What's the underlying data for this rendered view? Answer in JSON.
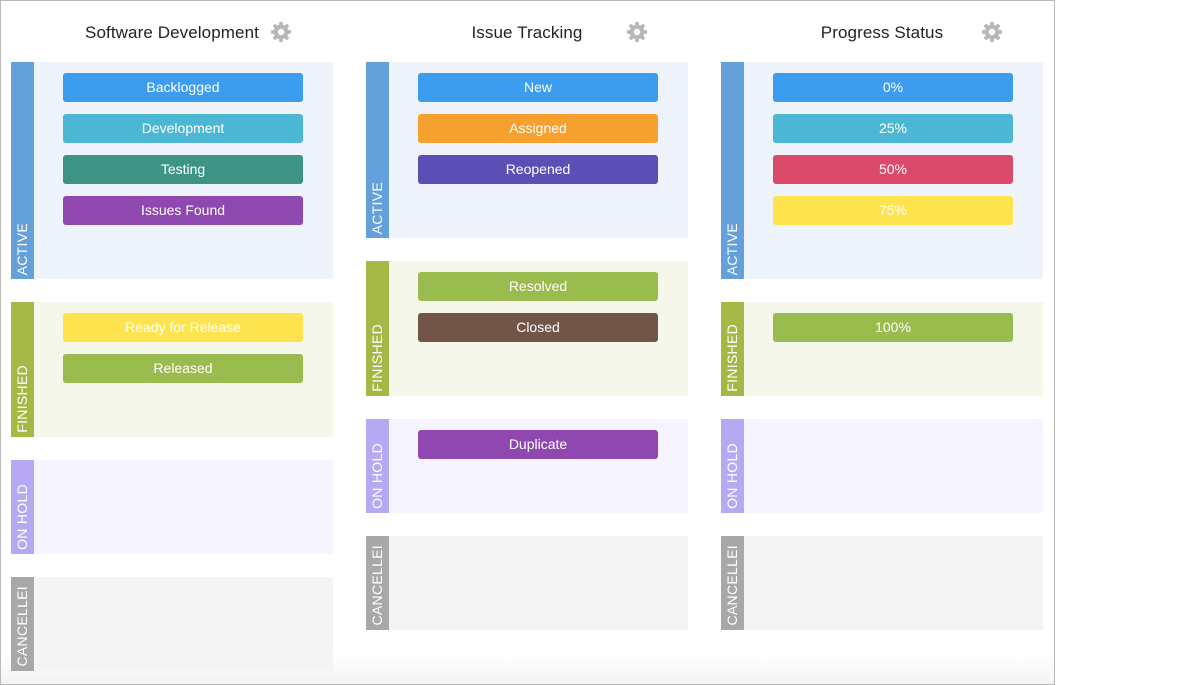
{
  "columns": [
    {
      "title": "Software Development",
      "settings_icon": "gear-icon",
      "sections": [
        {
          "label": "Active",
          "items": [
            {
              "label": "Backlogged",
              "color": "#3c9cef"
            },
            {
              "label": "Development",
              "color": "#4cb7d4"
            },
            {
              "label": "Testing",
              "color": "#3d9485"
            },
            {
              "label": "Issues Found",
              "color": "#8f48b0"
            }
          ]
        },
        {
          "label": "Finished",
          "items": [
            {
              "label": "Ready for Release",
              "color": "#fde34e"
            },
            {
              "label": "Released",
              "color": "#9abb4d"
            }
          ]
        },
        {
          "label": "On Hold",
          "items": []
        },
        {
          "label": "Cancelled",
          "display_label": "CANCELLEI",
          "items": []
        }
      ]
    },
    {
      "title": "Issue Tracking",
      "settings_icon": "gear-icon",
      "sections": [
        {
          "label": "Active",
          "items": [
            {
              "label": "New",
              "color": "#3c9cef"
            },
            {
              "label": "Assigned",
              "color": "#f6a02f"
            },
            {
              "label": "Reopened",
              "color": "#5b4fb5"
            }
          ]
        },
        {
          "label": "Finished",
          "items": [
            {
              "label": "Resolved",
              "color": "#9abb4d"
            },
            {
              "label": "Closed",
              "color": "#725548"
            }
          ]
        },
        {
          "label": "On Hold",
          "items": [
            {
              "label": "Duplicate",
              "color": "#8f48b0"
            }
          ]
        },
        {
          "label": "Cancelled",
          "display_label": "CANCELLEI",
          "items": []
        }
      ]
    },
    {
      "title": "Progress Status",
      "settings_icon": "gear-icon",
      "sections": [
        {
          "label": "Active",
          "items": [
            {
              "label": "0%",
              "color": "#3c9cef"
            },
            {
              "label": "25%",
              "color": "#4cb7d4"
            },
            {
              "label": "50%",
              "color": "#db4a6b"
            },
            {
              "label": "75%",
              "color": "#fde34e"
            }
          ]
        },
        {
          "label": "Finished",
          "items": [
            {
              "label": "100%",
              "color": "#9abb4d"
            }
          ]
        },
        {
          "label": "On Hold",
          "items": []
        },
        {
          "label": "Cancelled",
          "display_label": "CANCELLEI",
          "items": []
        }
      ]
    }
  ],
  "section_styles": {
    "Active": {
      "strip": "#64a0da",
      "bg": "#eef3fc"
    },
    "Finished": {
      "strip": "#a5b845",
      "bg": "#f4f7ea"
    },
    "On Hold": {
      "strip": "#b7a8f3",
      "bg": "#f6f4fe"
    },
    "Cancelled": {
      "strip": "#a8a8a8",
      "bg": "#f4f4f4"
    }
  }
}
